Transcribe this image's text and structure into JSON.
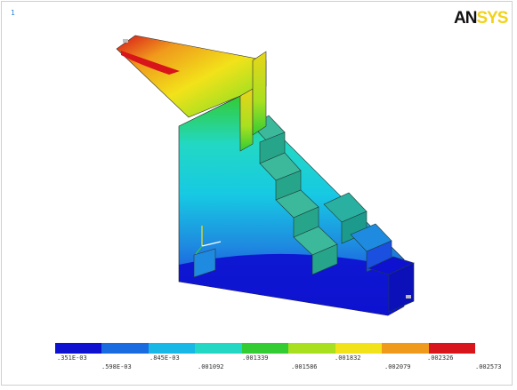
{
  "window": {
    "number": "1"
  },
  "logo": {
    "part1": "AN",
    "part2": "SYS"
  },
  "model": {
    "description": "contour-plot",
    "colors": {
      "blue": "#0e12d0",
      "mid_blue": "#1e8be0",
      "cyan": "#17c9e3",
      "aqua": "#22d8c4",
      "teal": "#3cb89a",
      "green": "#33cc33",
      "yellow_green": "#a8e020",
      "yellow": "#f2e21a",
      "orange": "#f09a1c",
      "red": "#d8151a"
    }
  },
  "legend": {
    "colors": [
      "#0e12d0",
      "#1a6be0",
      "#17b7e6",
      "#22d8c4",
      "#33cc33",
      "#a8e020",
      "#f2e21a",
      "#f09a1c",
      "#d8151a"
    ],
    "labels_top": [
      ".351E-03",
      ".845E-03",
      ".001339",
      ".001832",
      ".002326"
    ],
    "labels_bottom": [
      ".598E-03",
      ".001092",
      ".001586",
      ".002079",
      ".002573"
    ]
  }
}
